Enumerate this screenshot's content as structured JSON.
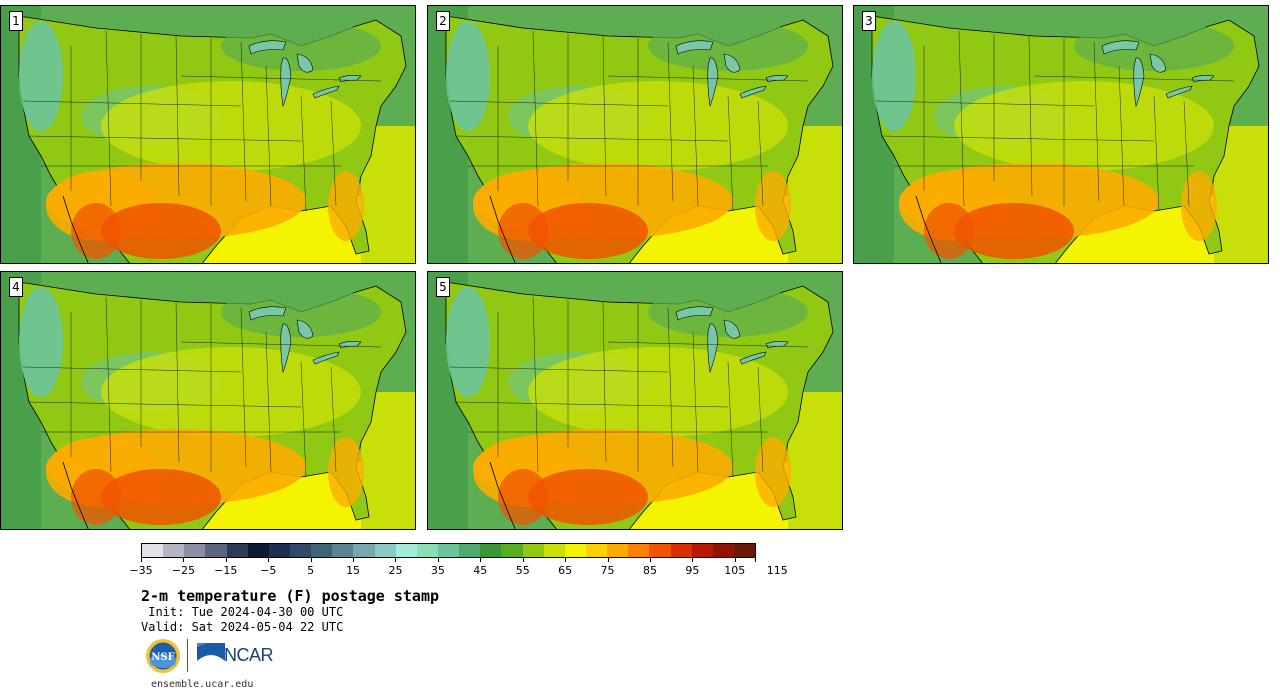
{
  "panels": [
    {
      "label": "1"
    },
    {
      "label": "2"
    },
    {
      "label": "3"
    },
    {
      "label": "4"
    },
    {
      "label": "5"
    }
  ],
  "colorbar": {
    "colors": [
      "#e2e2ea",
      "#b4b6c4",
      "#8a8fa2",
      "#5d6580",
      "#2e3a56",
      "#0e1a30",
      "#1c3050",
      "#2e4a66",
      "#3e6478",
      "#5a8490",
      "#78a8ae",
      "#8ec8c4",
      "#a4ecda",
      "#8cdcb4",
      "#6cc49a",
      "#4eaa6e",
      "#3a9638",
      "#5aac22",
      "#90c814",
      "#c8e008",
      "#f4f400",
      "#fcd000",
      "#fcac00",
      "#fc8000",
      "#f05400",
      "#d83000",
      "#b41c00",
      "#901400",
      "#6c1808"
    ],
    "tick_labels": [
      "−35",
      "−25",
      "−15",
      "−5",
      "5",
      "15",
      "25",
      "35",
      "45",
      "55",
      "65",
      "75",
      "85",
      "95",
      "105",
      "115"
    ]
  },
  "title": "2-m temperature (F) postage stamp",
  "init_line": " Init: Tue 2024-04-30 00 UTC",
  "valid_line": "Valid: Sat 2024-05-04 22 UTC",
  "logos": {
    "nsf": "NSF",
    "ncar": "NCAR"
  },
  "site_url": "ensemble.ucar.edu",
  "map_colors": {
    "ocean": "#5cae50",
    "pacific": "#4aa04a",
    "gulf": "#f4f400",
    "cool_mtn": "#6cc49a",
    "green": "#90c814",
    "yellow": "#c8e008",
    "warm": "#fcac00",
    "hot": "#f05400",
    "lake": "#78c8a8"
  }
}
